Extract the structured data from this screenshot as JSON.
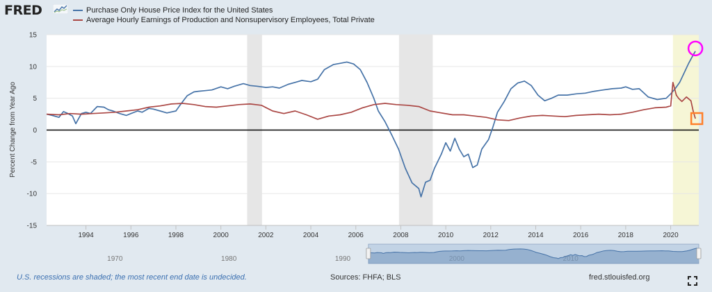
{
  "header": {
    "logo_text": "FRED",
    "logo_icon": "fred-sparkline-icon"
  },
  "legend": [
    {
      "label": "Purchase Only House Price Index for the United States",
      "color": "#4572a7"
    },
    {
      "label": "Average Hourly Earnings of Production and Nonsupervisory Employees, Total Private",
      "color": "#aa4643"
    }
  ],
  "footer": {
    "note": "U.S. recessions are shaded; the most recent end date is undecided.",
    "sources": "Sources: FHFA; BLS",
    "site": "fred.stlouisfed.org",
    "expand_icon": "expand-icon"
  },
  "colors": {
    "background": "#e1e9f0",
    "plot_background": "#ffffff",
    "recession_shade": "#e6e6e6",
    "highlight_shade": "#f6f6d6",
    "series_house": "#4572a7",
    "series_earnings": "#aa4643",
    "circle_marker": "#ff00ff",
    "square_marker": "#ff7f2a"
  },
  "chart_data": {
    "type": "line",
    "ylabel": "Percent Change from Year Ago",
    "xlim": [
      1992.25,
      2021.25
    ],
    "ylim": [
      -15,
      15
    ],
    "yticks": [
      15,
      10,
      5,
      0,
      -5,
      -10,
      -15
    ],
    "xticks": [
      1994,
      1996,
      1998,
      2000,
      2002,
      2004,
      2006,
      2008,
      2010,
      2012,
      2014,
      2016,
      2018,
      2020
    ],
    "grid": "horizontal",
    "recessions": [
      [
        2001.17,
        2001.83
      ],
      [
        2007.92,
        2009.42
      ]
    ],
    "highlight_range": [
      2020.1,
      2021.25
    ],
    "navigator": {
      "labels": [
        "1970",
        "1980",
        "1990",
        "2000",
        "2010"
      ],
      "label_years": [
        1970,
        1980,
        1990,
        2000,
        2010
      ],
      "range": [
        1964,
        2021.25
      ],
      "selection": [
        1992.25,
        2021.25
      ]
    },
    "series": [
      {
        "name": "Purchase Only House Price Index for the United States",
        "x": [
          1992.25,
          1992.5,
          1992.8,
          1993.0,
          1993.2,
          1993.4,
          1993.55,
          1993.8,
          1994.0,
          1994.2,
          1994.5,
          1994.8,
          1995.0,
          1995.2,
          1995.5,
          1995.8,
          1996.0,
          1996.3,
          1996.5,
          1996.8,
          1997.0,
          1997.3,
          1997.6,
          1998.0,
          1998.2,
          1998.5,
          1998.8,
          1999.0,
          1999.3,
          1999.6,
          2000.0,
          2000.3,
          2000.6,
          2001.0,
          2001.3,
          2001.6,
          2002.0,
          2002.3,
          2002.6,
          2003.0,
          2003.3,
          2003.6,
          2004.0,
          2004.3,
          2004.6,
          2005.0,
          2005.3,
          2005.6,
          2005.9,
          2006.2,
          2006.5,
          2006.8,
          2007.0,
          2007.3,
          2007.6,
          2007.9,
          2008.2,
          2008.5,
          2008.8,
          2008.9,
          2009.1,
          2009.3,
          2009.5,
          2009.8,
          2010.0,
          2010.2,
          2010.4,
          2010.6,
          2010.8,
          2011.0,
          2011.2,
          2011.4,
          2011.6,
          2011.9,
          2012.1,
          2012.3,
          2012.6,
          2012.9,
          2013.2,
          2013.5,
          2013.8,
          2014.1,
          2014.4,
          2014.7,
          2015.0,
          2015.4,
          2015.8,
          2016.2,
          2016.6,
          2017.0,
          2017.4,
          2017.8,
          2018.0,
          2018.3,
          2018.6,
          2019.0,
          2019.4,
          2019.8,
          2020.0,
          2020.2,
          2020.4,
          2020.6,
          2020.8,
          2021.0,
          2021.1
        ],
        "values": [
          2.5,
          2.3,
          2.0,
          2.9,
          2.6,
          2.2,
          1.0,
          2.6,
          2.8,
          2.6,
          3.7,
          3.6,
          3.2,
          3.0,
          2.6,
          2.3,
          2.6,
          3.0,
          2.8,
          3.4,
          3.3,
          3.0,
          2.7,
          3.0,
          4.0,
          5.4,
          6.0,
          6.1,
          6.2,
          6.3,
          6.8,
          6.5,
          6.9,
          7.3,
          7.0,
          6.9,
          6.7,
          6.8,
          6.6,
          7.2,
          7.5,
          7.8,
          7.6,
          8.0,
          9.5,
          10.3,
          10.5,
          10.7,
          10.4,
          9.5,
          7.5,
          5.0,
          3.0,
          1.3,
          -0.8,
          -3.0,
          -6.0,
          -8.3,
          -9.2,
          -10.5,
          -8.2,
          -7.9,
          -6.0,
          -3.8,
          -2.0,
          -3.3,
          -1.3,
          -3.0,
          -4.2,
          -3.8,
          -5.9,
          -5.5,
          -3.0,
          -1.5,
          0.5,
          2.8,
          4.5,
          6.5,
          7.4,
          7.7,
          7.0,
          5.5,
          4.6,
          5.0,
          5.5,
          5.5,
          5.7,
          5.8,
          6.1,
          6.3,
          6.5,
          6.6,
          6.8,
          6.4,
          6.5,
          5.2,
          4.8,
          5.0,
          5.7,
          6.5,
          7.5,
          9.0,
          10.5,
          11.8,
          12.4
        ]
      },
      {
        "name": "Average Hourly Earnings of Production and Nonsupervisory Employees, Total Private",
        "x": [
          1992.25,
          1992.8,
          1993.3,
          1993.8,
          1994.3,
          1994.8,
          1995.3,
          1995.8,
          1996.3,
          1996.8,
          1997.3,
          1997.8,
          1998.3,
          1998.8,
          1999.3,
          1999.8,
          2000.3,
          2000.8,
          2001.3,
          2001.8,
          2002.3,
          2002.8,
          2003.3,
          2003.8,
          2004.3,
          2004.8,
          2005.3,
          2005.8,
          2006.3,
          2006.8,
          2007.3,
          2007.8,
          2008.3,
          2008.8,
          2009.3,
          2009.8,
          2010.3,
          2010.8,
          2011.3,
          2011.8,
          2012.3,
          2012.8,
          2013.3,
          2013.8,
          2014.3,
          2014.8,
          2015.3,
          2015.8,
          2016.3,
          2016.8,
          2017.3,
          2017.8,
          2018.3,
          2018.8,
          2019.3,
          2019.8,
          2020.0,
          2020.1,
          2020.25,
          2020.35,
          2020.5,
          2020.7,
          2020.9,
          2021.0,
          2021.1
        ],
        "values": [
          2.5,
          2.4,
          2.6,
          2.5,
          2.6,
          2.7,
          2.8,
          3.0,
          3.2,
          3.6,
          3.8,
          4.1,
          4.2,
          4.0,
          3.7,
          3.6,
          3.8,
          4.0,
          4.1,
          3.9,
          3.0,
          2.6,
          3.0,
          2.4,
          1.7,
          2.2,
          2.4,
          2.8,
          3.5,
          4.0,
          4.2,
          4.0,
          3.9,
          3.7,
          3.0,
          2.7,
          2.4,
          2.4,
          2.2,
          2.0,
          1.6,
          1.5,
          1.9,
          2.2,
          2.3,
          2.2,
          2.1,
          2.3,
          2.4,
          2.5,
          2.4,
          2.5,
          2.8,
          3.2,
          3.5,
          3.6,
          3.8,
          7.5,
          5.5,
          5.0,
          4.5,
          5.2,
          4.6,
          3.0,
          1.8
        ]
      }
    ]
  }
}
